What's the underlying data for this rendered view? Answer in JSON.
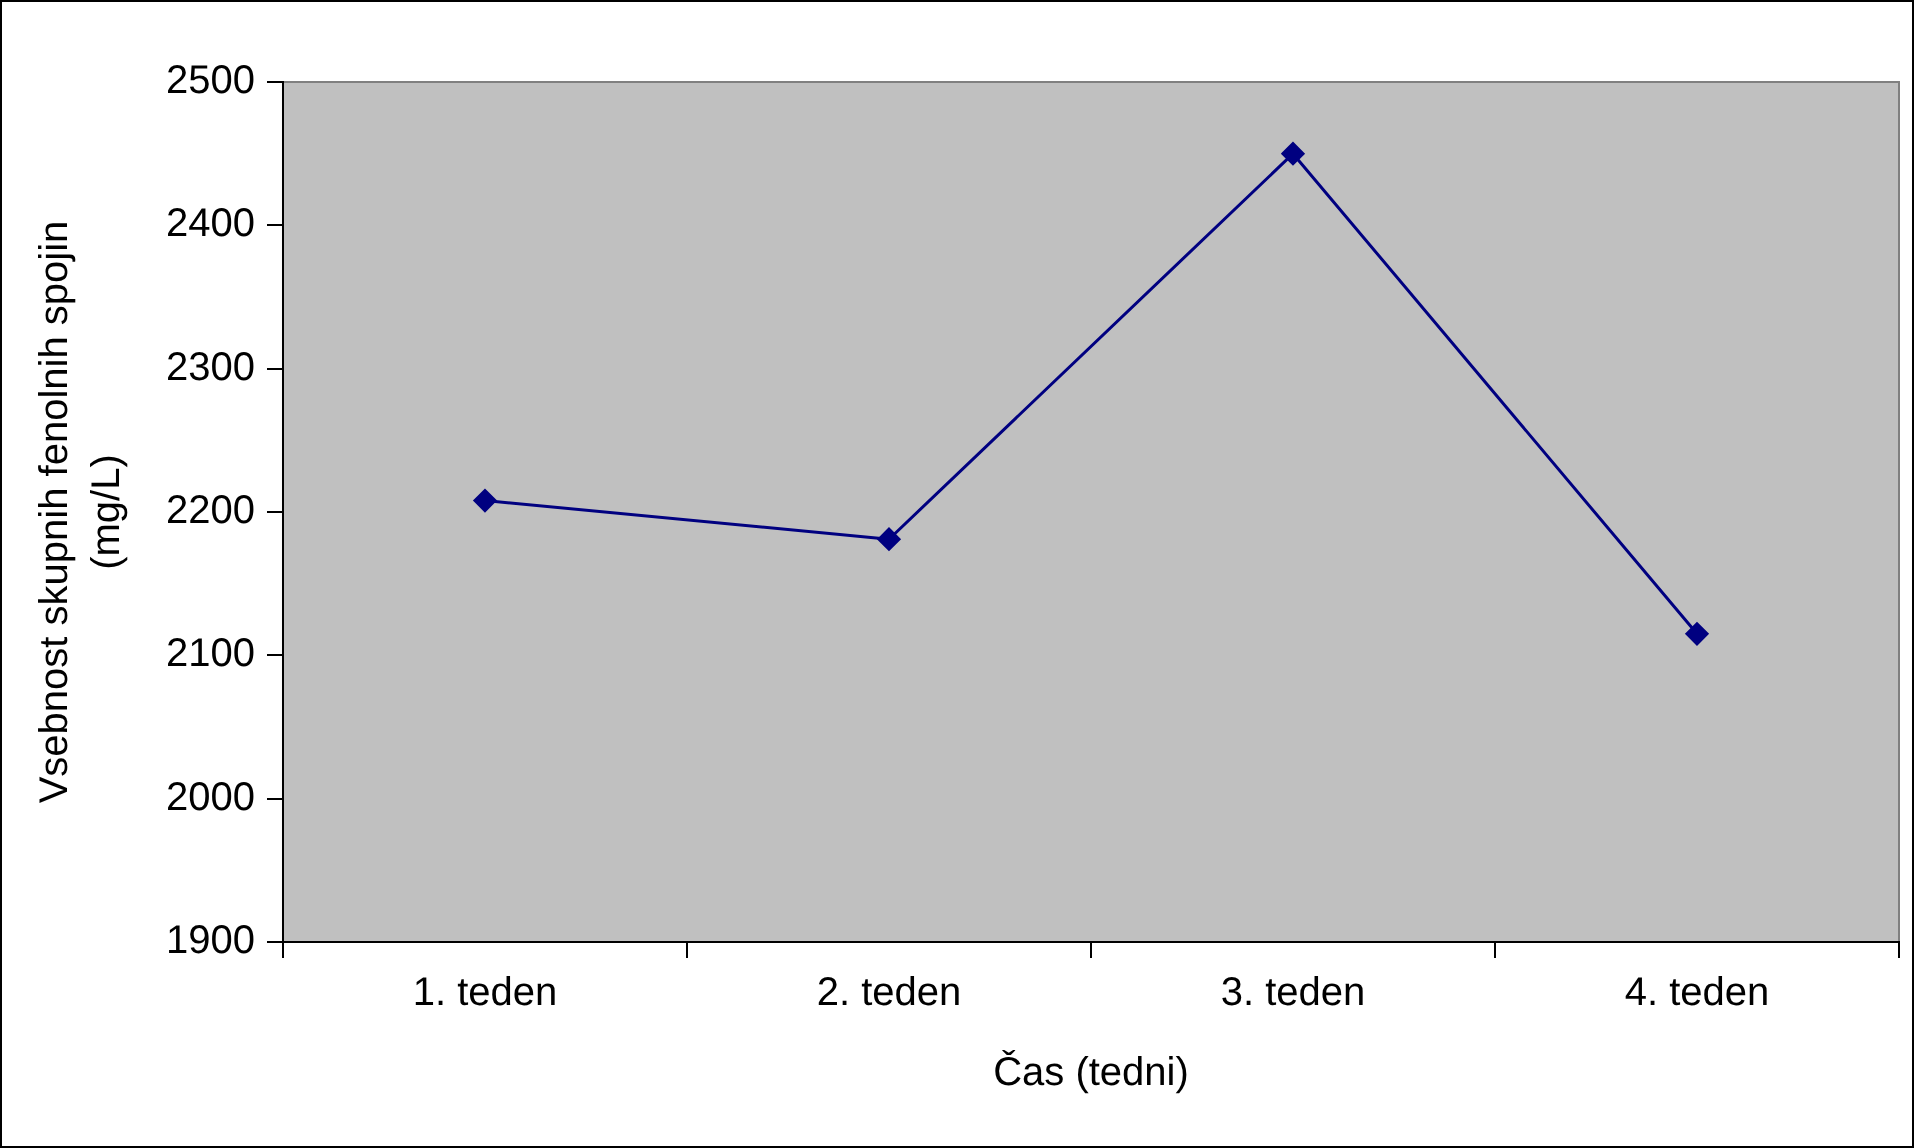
{
  "chart_data": {
    "type": "line",
    "xlabel": "Čas (tedni)",
    "ylabel": "Vsebnost skupnih fenolnih spojin (mg/L)",
    "categories": [
      "1. teden",
      "2. teden",
      "3. teden",
      "4. teden"
    ],
    "series": [
      {
        "color": "#000080",
        "values": [
          2208,
          2181,
          2450,
          2115
        ]
      }
    ],
    "ylim": [
      1900,
      2500
    ],
    "yticks": [
      1900,
      2000,
      2100,
      2200,
      2300,
      2400,
      2500
    ],
    "grid": false,
    "legend": false,
    "marker": "diamond",
    "line_style": "solid"
  }
}
